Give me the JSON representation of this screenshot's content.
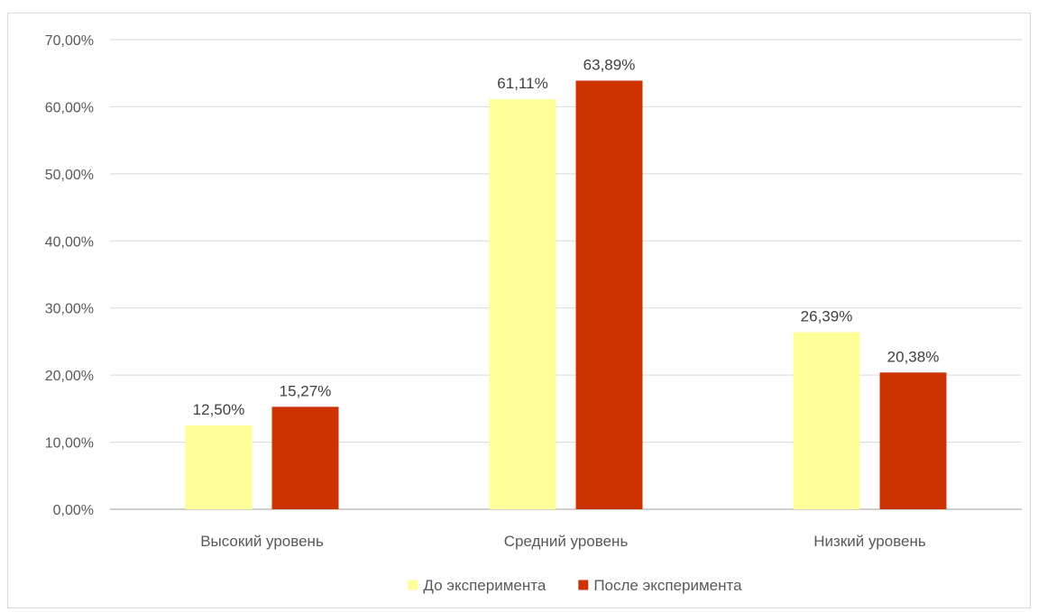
{
  "chart_data": {
    "type": "bar",
    "categories": [
      "Высокий уровень",
      "Средний уровень",
      "Низкий уровень"
    ],
    "series": [
      {
        "name": "До эксперимента",
        "values": [
          12.5,
          61.11,
          26.39
        ],
        "labels": [
          "12,50%",
          "61,11%",
          "26,39%"
        ],
        "color": "#ffff99"
      },
      {
        "name": "После эксперимента",
        "values": [
          15.27,
          63.89,
          20.38
        ],
        "labels": [
          "15,27%",
          "63,89%",
          "20,38%"
        ],
        "color": "#cc3300"
      }
    ],
    "ylim": [
      0,
      70
    ],
    "yticks": [
      {
        "value": 0,
        "label": "0,00%"
      },
      {
        "value": 10,
        "label": "10,00%"
      },
      {
        "value": 20,
        "label": "20,00%"
      },
      {
        "value": 30,
        "label": "30,00%"
      },
      {
        "value": 40,
        "label": "40,00%"
      },
      {
        "value": 50,
        "label": "50,00%"
      },
      {
        "value": 60,
        "label": "60,00%"
      },
      {
        "value": 70,
        "label": "70,00%"
      }
    ],
    "grid": true,
    "legend_position": "bottom",
    "gridline_color": "#d9d9d9",
    "axis_color": "#bfbfbf"
  }
}
